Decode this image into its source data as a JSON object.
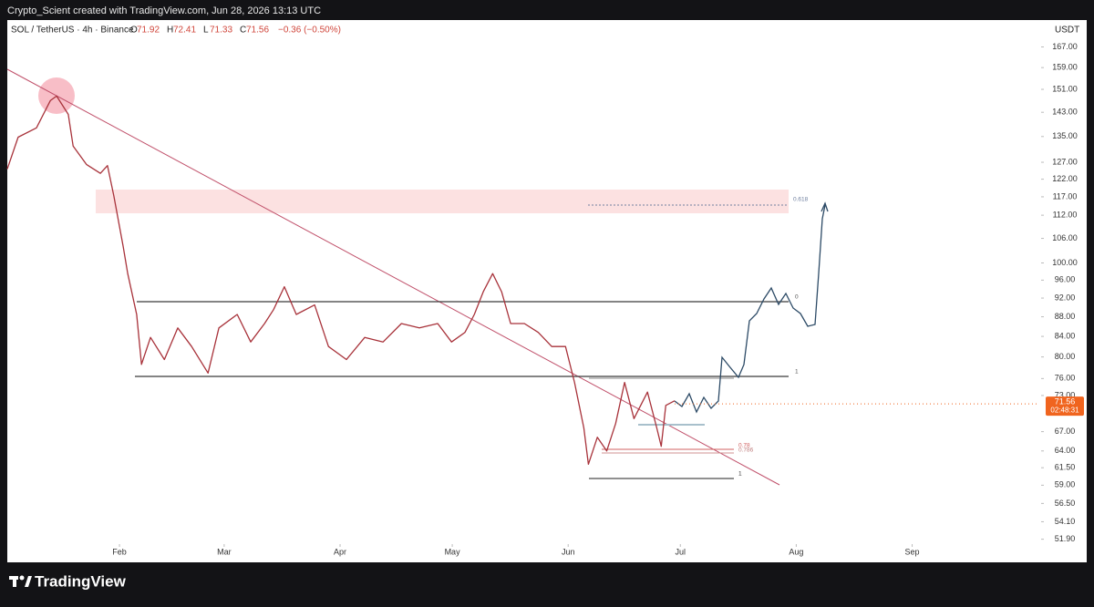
{
  "chart_data": {
    "type": "line",
    "credit": "Crypto_Scient created with TradingView.com, Jun 28, 2026 13:13 UTC",
    "title": "SOL / TetherUS · 4h · Binance",
    "ohlc": [
      {
        "label": "O",
        "value": 71.92
      },
      {
        "label": "H",
        "value": 72.41
      },
      {
        "label": "L",
        "value": 71.33
      },
      {
        "label": "C",
        "value": 71.56
      }
    ],
    "change": "−0.36 (−0.50%)",
    "currency": "USDT",
    "last_price": 71.56,
    "countdown": "02:48:31",
    "brand": "TradingView",
    "log_scale": true,
    "x": [
      2,
      4.9,
      9.8,
      13.5,
      15.2,
      18.3,
      19.6,
      23.2,
      26.9,
      28.8,
      30.5,
      33,
      34.2,
      36.6,
      37.9,
      40.3,
      44,
      47.6,
      51.3,
      55.7,
      58.6,
      63.5,
      67.1,
      70.8,
      73.2,
      76.1,
      79.3,
      84.2,
      87.9,
      92.7,
      97.6,
      102.5,
      107.4,
      112.2,
      117.1,
      120.8,
      124.4,
      126.9,
      129.3,
      131.8,
      134.2,
      136.6,
      140.3,
      144,
      147.6,
      151.3,
      153.7,
      156.2,
      157.4,
      159.8,
      162.3,
      164.7,
      167.1,
      169.6,
      173.2,
      175.7,
      176.9,
      178.1,
      180.5
    ],
    "series": [
      {
        "color": "#a8323a",
        "values": [
          125,
          134.8,
          137.8,
          147,
          148.6,
          142.3,
          132,
          126.3,
          123.7,
          126,
          117.2,
          104,
          97.5,
          88.5,
          78.6,
          83.8,
          79.5,
          85.7,
          82,
          77,
          85.7,
          88.5,
          82.9,
          86.6,
          89.5,
          94.5,
          88.5,
          90.5,
          82,
          79.5,
          83.8,
          82.9,
          86.6,
          85.7,
          86.6,
          82.9,
          84.8,
          88.5,
          93.4,
          97.5,
          93.4,
          86.6,
          86.6,
          84.8,
          82,
          82,
          75.3,
          67.6,
          62,
          66.1,
          64,
          68.3,
          75.3,
          69.1,
          73.6,
          67.6,
          64.7,
          71.3,
          72.1
        ]
      }
    ],
    "xlim": [
      2,
      278
    ],
    "xticks": [
      {
        "value": 32,
        "label": "Feb"
      },
      {
        "value": 60,
        "label": "Mar"
      },
      {
        "value": 91,
        "label": "Apr"
      },
      {
        "value": 121,
        "label": "May"
      },
      {
        "value": 152,
        "label": "Jun"
      },
      {
        "value": 182,
        "label": "Jul"
      },
      {
        "value": 213,
        "label": "Aug"
      },
      {
        "value": 244,
        "label": "Sep"
      }
    ],
    "ylim": [
      51.3,
      178
    ],
    "yticks": [
      {
        "value": 167,
        "label": "167.00"
      },
      {
        "value": 159,
        "label": "159.00"
      },
      {
        "value": 151,
        "label": "151.00"
      },
      {
        "value": 143,
        "label": "143.00"
      },
      {
        "value": 135,
        "label": "135.00"
      },
      {
        "value": 127,
        "label": "127.00"
      },
      {
        "value": 122,
        "label": "122.00"
      },
      {
        "value": 117,
        "label": "117.00"
      },
      {
        "value": 112,
        "label": "112.00"
      },
      {
        "value": 106,
        "label": "106.00"
      },
      {
        "value": 100,
        "label": "100.00"
      },
      {
        "value": 96,
        "label": "96.00"
      },
      {
        "value": 92,
        "label": "92.00"
      },
      {
        "value": 88,
        "label": "88.00"
      },
      {
        "value": 84,
        "label": "84.00"
      },
      {
        "value": 80,
        "label": "80.00"
      },
      {
        "value": 76,
        "label": "76.00"
      },
      {
        "value": 73,
        "label": "73.00"
      },
      {
        "value": 67,
        "label": "67.00"
      },
      {
        "value": 64,
        "label": "64.00"
      },
      {
        "value": 61.5,
        "label": "61.50"
      },
      {
        "value": 59,
        "label": "59.00"
      },
      {
        "value": 56.5,
        "label": "56.50"
      },
      {
        "value": 54.1,
        "label": "54.10"
      },
      {
        "value": 51.9,
        "label": "51.90"
      }
    ],
    "annotations": [
      "0.618",
      "0",
      "1",
      "0.78",
      "0.786",
      "1"
    ]
  }
}
